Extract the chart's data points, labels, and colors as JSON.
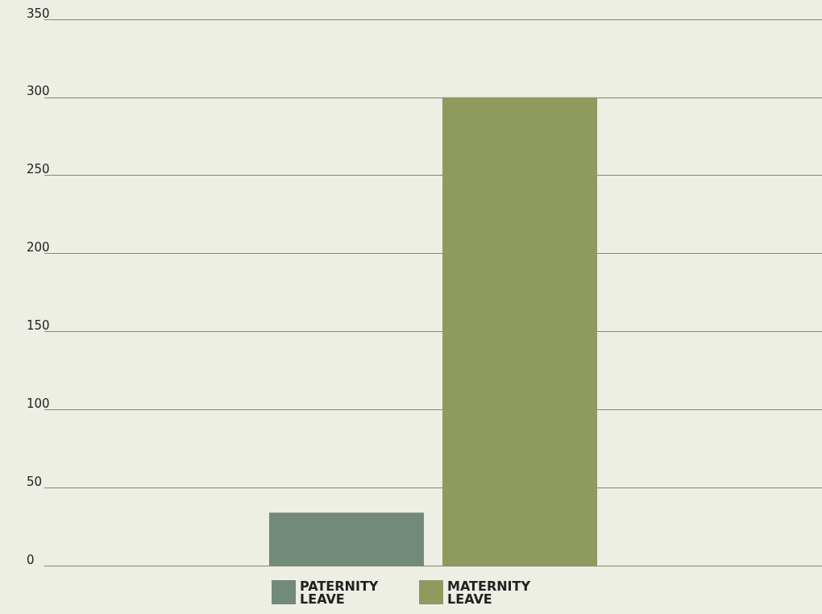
{
  "chart_data": {
    "type": "bar",
    "categories": [
      null
    ],
    "series": [
      {
        "name": "PATERNITY LEAVE",
        "color": "#728a7a",
        "values": [
          34
        ]
      },
      {
        "name": "MATERNITY LEAVE",
        "color": "#8f9a5f",
        "values": [
          300
        ]
      }
    ],
    "ylim": [
      0,
      350
    ],
    "yticks": [
      0,
      50,
      100,
      150,
      200,
      250,
      300,
      350
    ],
    "grid": "y",
    "legend": "bottom"
  }
}
